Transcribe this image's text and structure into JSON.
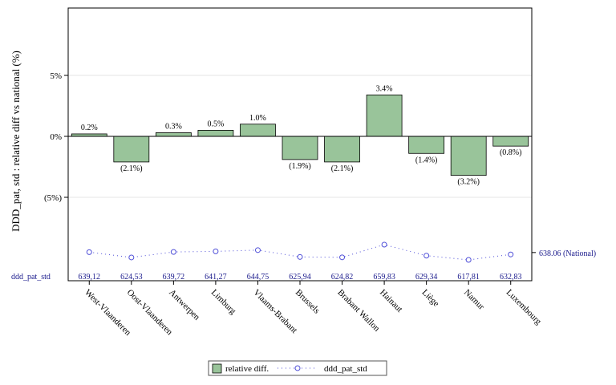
{
  "chart_data": {
    "type": "bar",
    "ylabel": "DDD_pat, std : relative diff  vs national (%)",
    "categories": [
      "West-Vlaanderen",
      "Oost-Vlaanderen",
      "Antwerpen",
      "Limburg",
      "Vlaams-Brabant",
      "Brussels",
      "Brabant Wallon",
      "Hainaut",
      "Liège",
      "Namur",
      "Luxembourg"
    ],
    "series": [
      {
        "name": "relative diff.",
        "type": "bar",
        "color": "#99c49a",
        "values": [
          0.2,
          -2.1,
          0.3,
          0.5,
          1.0,
          -1.9,
          -2.1,
          3.4,
          -1.4,
          -3.2,
          -0.8
        ],
        "labels": [
          "0.2%",
          "(2.1%)",
          "0.3%",
          "0.5%",
          "1.0%",
          "(1.9%)",
          "(2.1%)",
          "3.4%",
          "(1.4%)",
          "(3.2%)",
          "(0.8%)"
        ]
      },
      {
        "name": "ddd_pat_std",
        "type": "line",
        "color": "#5050d8",
        "values": [
          639.12,
          624.53,
          639.72,
          641.27,
          644.75,
          625.94,
          624.82,
          659.83,
          629.34,
          617.81,
          632.83
        ],
        "labels": [
          "639,12",
          "624,53",
          "639,72",
          "641,27",
          "644,75",
          "625,94",
          "624,82",
          "659,83",
          "629,34",
          "617,81",
          "632,83"
        ]
      }
    ],
    "yticks": [
      5,
      0,
      -5
    ],
    "ytick_labels": [
      "5%",
      "0%",
      "(5%)"
    ],
    "ylim": [
      -6,
      10.2
    ],
    "national": {
      "value": 638.06,
      "label": "638.06 (National)"
    },
    "row_label": "ddd_pat_std",
    "grid": true,
    "legend_position": "bottom-center"
  }
}
